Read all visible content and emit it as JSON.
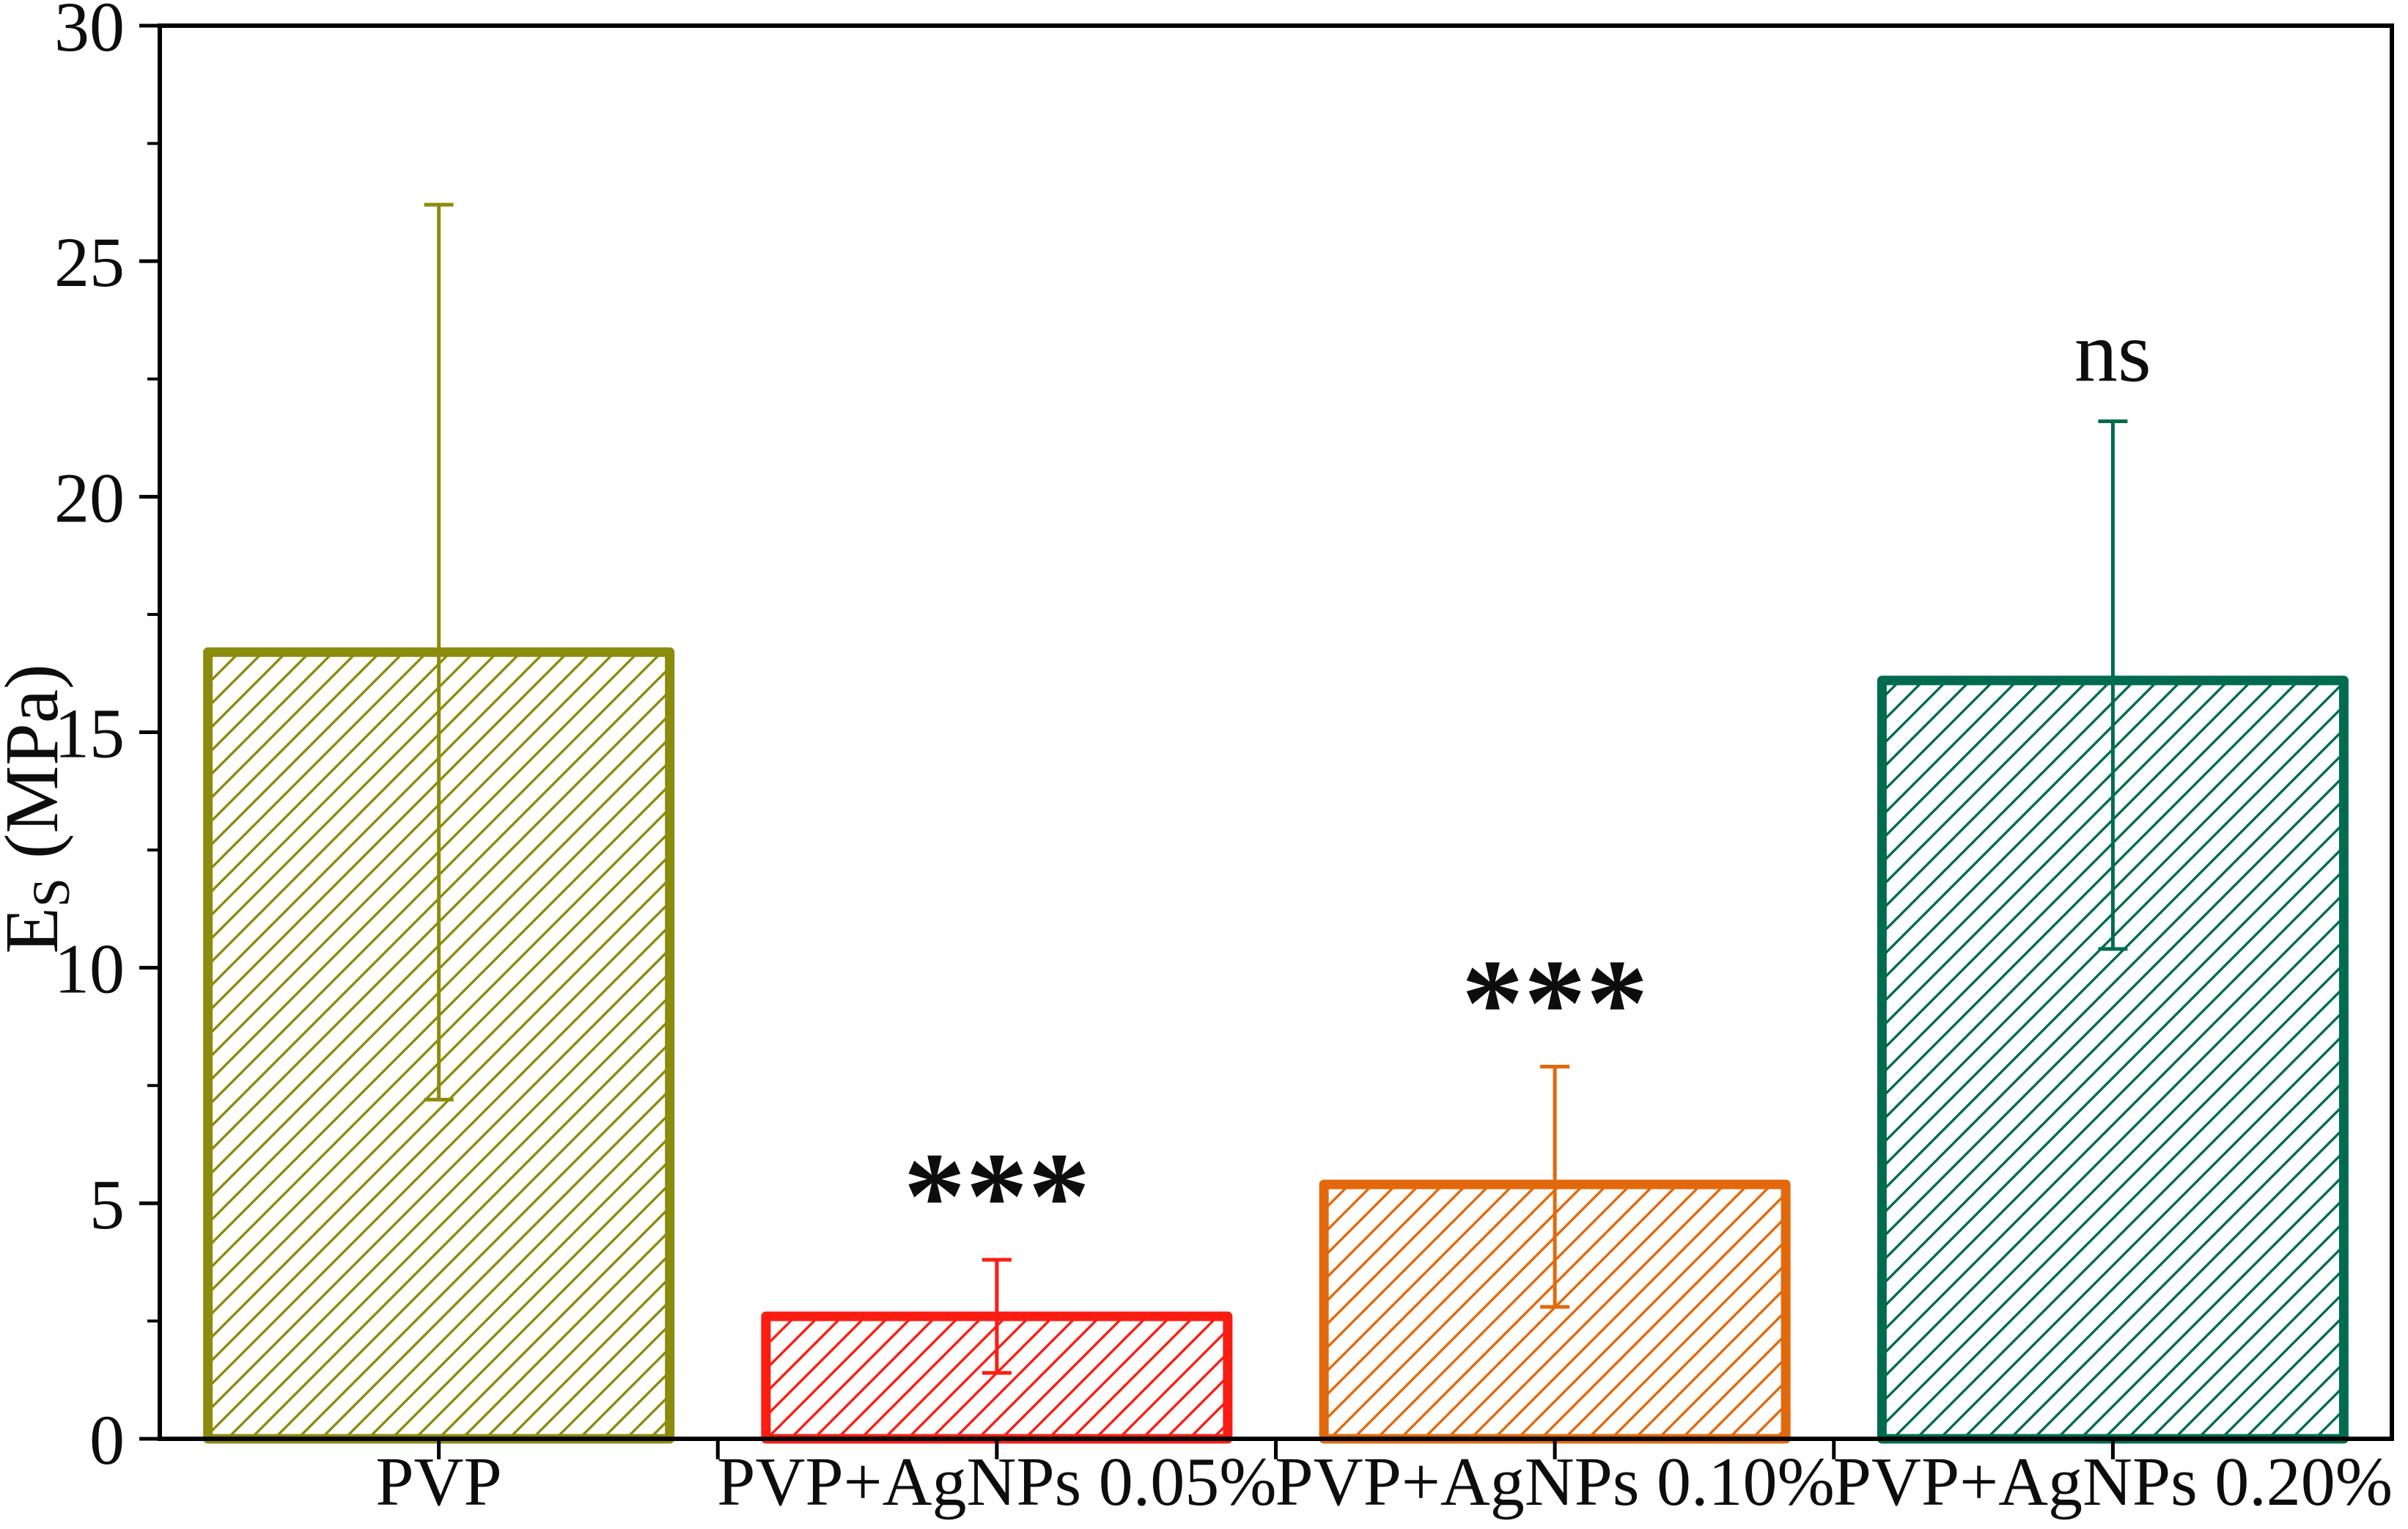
{
  "chart_data": {
    "type": "bar",
    "title": "",
    "ylabel": "E_S (MPa)",
    "ylabel_parts": {
      "symbol": "E",
      "subscript": "S",
      "units": "(MPa)"
    },
    "xlabel": "",
    "categories": [
      "PVP",
      "PVP+AgNPs 0.05%",
      "PVP+AgNPs 0.10%",
      "PVP+AgNPs 0.20%"
    ],
    "values": [
      16.7,
      2.6,
      5.4,
      16.1
    ],
    "error_bars": [
      {
        "low": 7.2,
        "high": 26.2
      },
      {
        "low": 1.4,
        "high": 3.8
      },
      {
        "low": 2.8,
        "high": 7.9
      },
      {
        "low": 10.4,
        "high": 21.6
      }
    ],
    "significance_annotations": [
      "",
      "***",
      "***",
      "ns"
    ],
    "bar_colors": [
      "#8B8B0E",
      "#FB1C12",
      "#E2690B",
      "#016B50"
    ],
    "bar_fill_style": "diagonal-hatch-forward",
    "axis_color": "#000000",
    "text_color": "#0d0d0d",
    "ylim": [
      0,
      30
    ],
    "y_major_ticks": [
      0,
      5,
      10,
      15,
      20,
      25,
      30
    ],
    "y_minor_step": 2.5,
    "grid": "off",
    "legend": "none",
    "frame": "full-box"
  }
}
